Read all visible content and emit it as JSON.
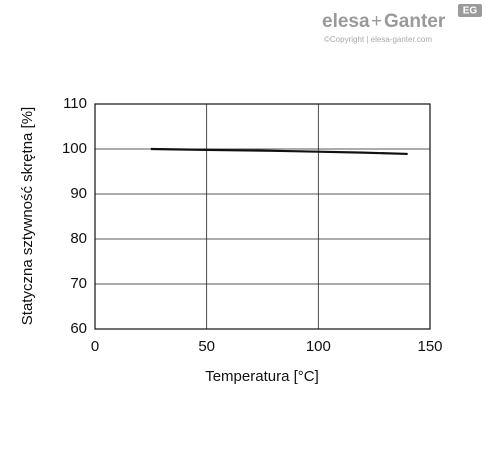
{
  "logo": {
    "brand_left": "elesa",
    "plus": "+",
    "brand_right": "Ganter",
    "badge": "EG",
    "copyright": "©Copyright | elesa-ganter.com"
  },
  "chart_data": {
    "type": "line",
    "x_label": "Temperatura [°C]",
    "y_label": "Statyczna sztywność skrętna [%]",
    "x": [
      25,
      50,
      80,
      100,
      120,
      140
    ],
    "series": [
      {
        "name": null,
        "color": "#111111",
        "values": [
          100,
          99.8,
          99.6,
          99.4,
          99.2,
          98.9
        ]
      }
    ],
    "xlim": [
      0,
      150
    ],
    "xticks": [
      0,
      50,
      100,
      150
    ],
    "ylim": [
      60,
      110
    ],
    "yticks": [
      60,
      70,
      80,
      90,
      100,
      110
    ],
    "grid": true
  }
}
